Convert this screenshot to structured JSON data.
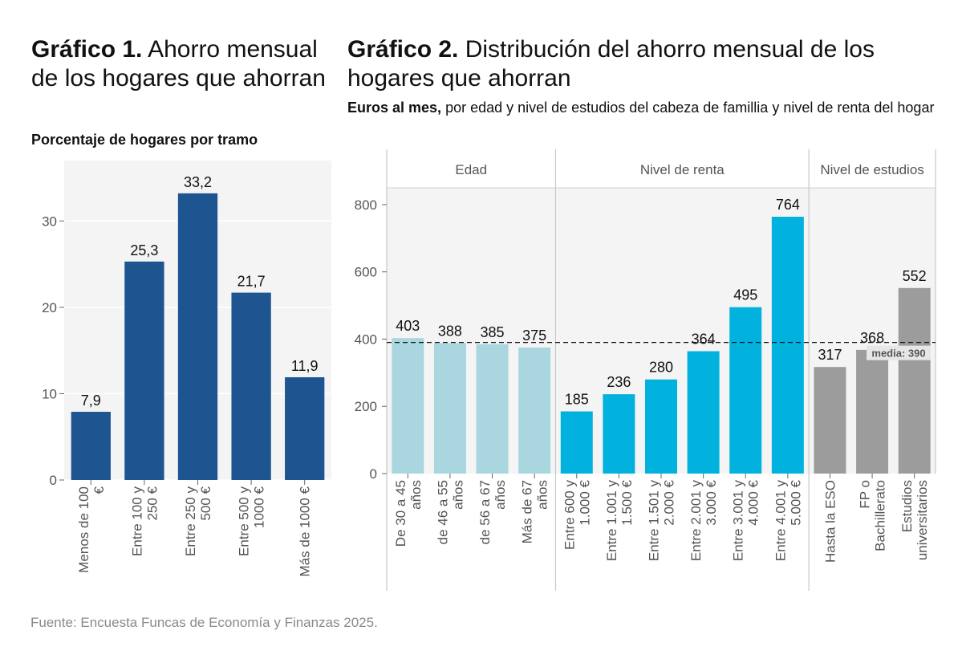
{
  "chart1": {
    "title_bold": "Gráfico 1.",
    "title_rest": " Ahorro mensual de los hogares que ahorran",
    "subtitle": "Porcentaje de hogares por tramo"
  },
  "chart2": {
    "title_bold": "Gráfico 2.",
    "title_rest": " Distribución del ahorro mensual de los hogares que ahorran",
    "subtitle_bold": "Euros al mes,",
    "subtitle_rest": " por edad y nivel de estudios del cabeza de famillia y nivel de renta del hogar"
  },
  "source": "Fuente: Encuesta Funcas de Economía y Finanzas 2025.",
  "colors": {
    "dark_blue": "#1e5591",
    "light_blue": "#a9d6df",
    "cyan": "#00b2dd",
    "gray": "#9c9c9c",
    "panel_bg": "#f4f4f4"
  },
  "chart_data": [
    {
      "type": "bar",
      "title": "Gráfico 1. Ahorro mensual de los hogares que ahorran",
      "ylabel": "Porcentaje de hogares por tramo",
      "categories": [
        [
          "Menos de 100",
          "€"
        ],
        [
          "Entre 100 y",
          "250 €"
        ],
        [
          "Entre 250 y",
          "500 €"
        ],
        [
          "Entre 500 y",
          "1000 €"
        ],
        [
          "Más de 1000 €"
        ]
      ],
      "values": [
        7.9,
        25.3,
        33.2,
        21.7,
        11.9
      ],
      "value_labels": [
        "7,9",
        "25,3",
        "33,2",
        "21,7",
        "11,9"
      ],
      "yticks": [
        0,
        10,
        20,
        30
      ],
      "ylim": [
        0,
        37
      ],
      "grid": true
    },
    {
      "type": "bar",
      "title": "Gráfico 2. Distribución del ahorro mensual de los hogares que ahorran",
      "ylabel": "Euros al mes",
      "yticks": [
        0,
        200,
        400,
        600,
        800
      ],
      "ylim": [
        0,
        850
      ],
      "mean": 390,
      "mean_label": "media: 390",
      "facets": [
        {
          "name": "Edad",
          "color": "light_blue",
          "categories": [
            [
              "De 30 a 45",
              "años"
            ],
            [
              "de 46 a 55",
              "años"
            ],
            [
              "de 56 a 67",
              "años"
            ],
            [
              "Más de 67",
              "años"
            ]
          ],
          "values": [
            403,
            388,
            385,
            375
          ]
        },
        {
          "name": "Nivel de renta",
          "color": "cyan",
          "categories": [
            [
              "Entre 600 y",
              "1.000 €"
            ],
            [
              "Entre 1.001 y",
              "1.500 €"
            ],
            [
              "Entre 1.501 y",
              "2.000 €"
            ],
            [
              "Entre 2.001 y",
              "3.000 €"
            ],
            [
              "Entre 3.001 y",
              "4.000 €"
            ],
            [
              "Entre 4.001 y",
              "5.000 €"
            ]
          ],
          "values": [
            185,
            236,
            280,
            364,
            495,
            764
          ]
        },
        {
          "name": "Nivel de estudios",
          "color": "gray",
          "categories": [
            [
              "Hasta la ESO"
            ],
            [
              "FP o",
              "Bachillerato"
            ],
            [
              "Estudios",
              "universitarios"
            ]
          ],
          "values": [
            317,
            368,
            552
          ]
        }
      ]
    }
  ]
}
